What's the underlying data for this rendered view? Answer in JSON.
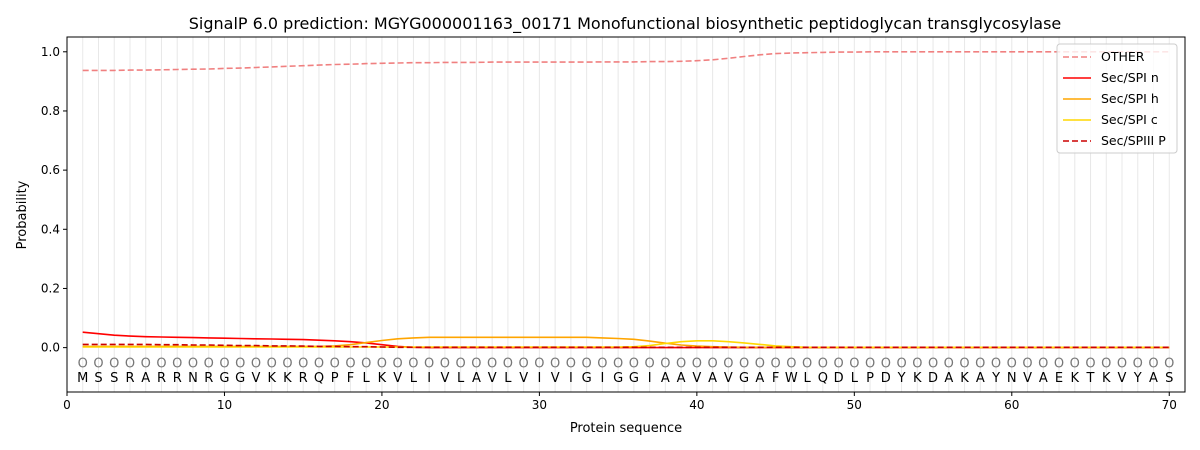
{
  "chart_data": {
    "type": "line",
    "title": "SignalP 6.0 prediction: MGYG000001163_00171 Monofunctional biosynthetic peptidoglycan transglycosylase",
    "xlabel": "Protein sequence",
    "ylabel": "Probability",
    "xlim": [
      0,
      71
    ],
    "ylim": [
      -0.15,
      1.05
    ],
    "xticks": [
      0,
      10,
      20,
      30,
      40,
      50,
      60,
      70
    ],
    "yticks": [
      0.0,
      0.2,
      0.4,
      0.6,
      0.8,
      1.0
    ],
    "ytick_labels": [
      "0.0",
      "0.2",
      "0.4",
      "0.6",
      "0.8",
      "1.0"
    ],
    "grid": "vertical lines at each residue",
    "legend_position": "top-right",
    "sequence": [
      "M",
      "S",
      "S",
      "R",
      "A",
      "R",
      "R",
      "N",
      "R",
      "G",
      "G",
      "V",
      "K",
      "K",
      "R",
      "Q",
      "P",
      "F",
      "L",
      "K",
      "V",
      "L",
      "I",
      "V",
      "L",
      "A",
      "V",
      "L",
      "V",
      "I",
      "V",
      "I",
      "G",
      "I",
      "G",
      "G",
      "I",
      "A",
      "A",
      "V",
      "A",
      "V",
      "G",
      "A",
      "F",
      "W",
      "L",
      "Q",
      "D",
      "L",
      "P",
      "D",
      "Y",
      "K",
      "D",
      "A",
      "K",
      "A",
      "Y",
      "N",
      "V",
      "A",
      "E",
      "K",
      "T",
      "K",
      "V",
      "Y",
      "A",
      "S"
    ],
    "region_label": "O",
    "series": [
      {
        "name": "OTHER",
        "color": "#f08080",
        "dash": true,
        "values": [
          0.937,
          0.937,
          0.937,
          0.938,
          0.938,
          0.939,
          0.94,
          0.941,
          0.942,
          0.944,
          0.945,
          0.947,
          0.949,
          0.951,
          0.953,
          0.955,
          0.957,
          0.958,
          0.96,
          0.961,
          0.962,
          0.963,
          0.963,
          0.964,
          0.964,
          0.964,
          0.965,
          0.965,
          0.965,
          0.965,
          0.965,
          0.965,
          0.965,
          0.966,
          0.966,
          0.966,
          0.967,
          0.967,
          0.968,
          0.97,
          0.973,
          0.978,
          0.984,
          0.99,
          0.994,
          0.996,
          0.997,
          0.998,
          0.999,
          0.999,
          1,
          1,
          1,
          1,
          1,
          1,
          1,
          1,
          1,
          1,
          1,
          1,
          1,
          1,
          1,
          1,
          1,
          1,
          1,
          1
        ]
      },
      {
        "name": "Sec/SPI n",
        "color": "#ff0000",
        "dash": false,
        "values": [
          0.052,
          0.047,
          0.042,
          0.039,
          0.037,
          0.036,
          0.035,
          0.034,
          0.033,
          0.032,
          0.031,
          0.03,
          0.029,
          0.028,
          0.027,
          0.025,
          0.023,
          0.02,
          0.016,
          0.01,
          0.004,
          0.001,
          0,
          0,
          0,
          0,
          0,
          0,
          0,
          0,
          0,
          0,
          0,
          0,
          0,
          0,
          0,
          0,
          0,
          0,
          0,
          0,
          0,
          0,
          0,
          0,
          0,
          0,
          0,
          0,
          0,
          0,
          0,
          0,
          0,
          0,
          0,
          0,
          0,
          0,
          0,
          0,
          0,
          0,
          0,
          0,
          0,
          0,
          0,
          0
        ]
      },
      {
        "name": "Sec/SPI h",
        "color": "#ffa500",
        "dash": false,
        "values": [
          0.004,
          0.004,
          0.004,
          0.004,
          0.004,
          0.004,
          0.004,
          0.004,
          0.004,
          0.004,
          0.004,
          0.004,
          0.004,
          0.004,
          0.004,
          0.004,
          0.006,
          0.01,
          0.017,
          0.024,
          0.03,
          0.033,
          0.035,
          0.035,
          0.035,
          0.035,
          0.035,
          0.035,
          0.035,
          0.035,
          0.035,
          0.035,
          0.035,
          0.033,
          0.031,
          0.028,
          0.022,
          0.015,
          0.009,
          0.005,
          0.003,
          0.002,
          0.001,
          0.001,
          0.001,
          0.001,
          0.001,
          0.001,
          0.001,
          0.001,
          0.001,
          0.001,
          0.001,
          0.001,
          0.001,
          0.001,
          0.001,
          0.001,
          0.001,
          0.001,
          0.001,
          0.001,
          0.001,
          0.001,
          0.001,
          0.001,
          0.001,
          0.001,
          0.001,
          0.001
        ]
      },
      {
        "name": "Sec/SPI c",
        "color": "#ffd700",
        "dash": false,
        "values": [
          0.002,
          0.002,
          0.002,
          0.002,
          0.002,
          0.002,
          0.002,
          0.002,
          0.002,
          0.002,
          0.002,
          0.002,
          0.002,
          0.002,
          0.002,
          0.002,
          0.002,
          0.002,
          0.002,
          0.002,
          0.002,
          0.002,
          0.002,
          0.002,
          0.002,
          0.002,
          0.002,
          0.002,
          0.002,
          0.002,
          0.002,
          0.002,
          0.002,
          0.002,
          0.002,
          0.003,
          0.007,
          0.014,
          0.02,
          0.023,
          0.023,
          0.02,
          0.016,
          0.011,
          0.006,
          0.003,
          0.001,
          0.001,
          0.001,
          0.001,
          0.001,
          0.001,
          0.001,
          0.001,
          0.001,
          0.001,
          0.001,
          0.001,
          0.001,
          0.001,
          0.001,
          0.001,
          0.001,
          0.001,
          0.001,
          0.001,
          0.001,
          0.001,
          0.001,
          0.001
        ]
      },
      {
        "name": "Sec/SPIII P",
        "color": "#cc0000",
        "dash": true,
        "values": [
          0.011,
          0.011,
          0.011,
          0.011,
          0.011,
          0.01,
          0.01,
          0.009,
          0.009,
          0.008,
          0.007,
          0.007,
          0.006,
          0.006,
          0.005,
          0.004,
          0.004,
          0.003,
          0.003,
          0.002,
          0.001,
          0.001,
          0.001,
          0.001,
          0.001,
          0.001,
          0.001,
          0.001,
          0.001,
          0.001,
          0.001,
          0.001,
          0.001,
          0.001,
          0.001,
          0.001,
          0.001,
          0.001,
          0.001,
          0.001,
          0.001,
          0.001,
          0.001,
          0.001,
          0.001,
          0.001,
          0.001,
          0.001,
          0.001,
          0.001,
          0.001,
          0.001,
          0.001,
          0.001,
          0.001,
          0.001,
          0.001,
          0.001,
          0.001,
          0.001,
          0.001,
          0.001,
          0.001,
          0.001,
          0.001,
          0.001,
          0.001,
          0.001,
          0.001,
          0.001
        ]
      }
    ]
  }
}
